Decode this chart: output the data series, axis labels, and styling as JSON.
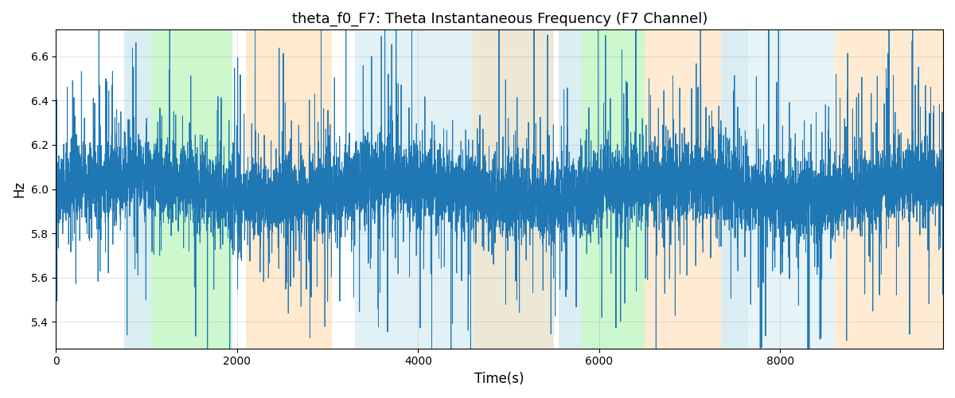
{
  "title": "theta_f0_F7: Theta Instantaneous Frequency (F7 Channel)",
  "xlabel": "Time(s)",
  "ylabel": "Hz",
  "line_color": "#1f77b4",
  "line_width": 0.7,
  "background_color": "#ffffff",
  "xlim": [
    0,
    9800
  ],
  "ylim": [
    5.28,
    6.72
  ],
  "yticks": [
    5.4,
    5.6,
    5.8,
    6.0,
    6.2,
    6.4,
    6.6
  ],
  "figsize": [
    12,
    5
  ],
  "dpi": 100,
  "seed": 42,
  "n_points": 9800,
  "bg_regions": [
    {
      "xmin": 750,
      "xmax": 1050,
      "color": "#add8e6",
      "alpha": 0.45
    },
    {
      "xmin": 1050,
      "xmax": 1950,
      "color": "#90ee90",
      "alpha": 0.45
    },
    {
      "xmin": 2100,
      "xmax": 3050,
      "color": "#ffd8a8",
      "alpha": 0.55
    },
    {
      "xmin": 3300,
      "xmax": 5500,
      "color": "#add8e6",
      "alpha": 0.35
    },
    {
      "xmin": 4600,
      "xmax": 5500,
      "color": "#ffd8a8",
      "alpha": 0.4
    },
    {
      "xmin": 5550,
      "xmax": 5800,
      "color": "#add8e6",
      "alpha": 0.45
    },
    {
      "xmin": 5800,
      "xmax": 6500,
      "color": "#90ee90",
      "alpha": 0.45
    },
    {
      "xmin": 6500,
      "xmax": 7350,
      "color": "#ffd8a8",
      "alpha": 0.5
    },
    {
      "xmin": 7350,
      "xmax": 7650,
      "color": "#add8e6",
      "alpha": 0.45
    },
    {
      "xmin": 7650,
      "xmax": 8600,
      "color": "#add8e6",
      "alpha": 0.3
    },
    {
      "xmin": 8600,
      "xmax": 9800,
      "color": "#ffd8a8",
      "alpha": 0.5
    }
  ]
}
